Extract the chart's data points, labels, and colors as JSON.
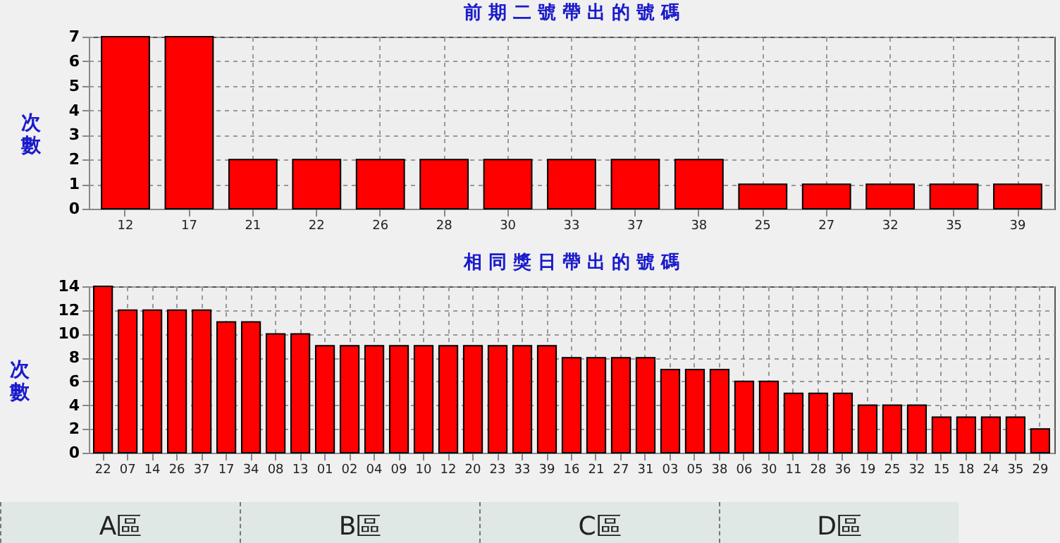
{
  "chart_data": [
    {
      "type": "bar",
      "title": "前 期 二 號 帶 出 的 號 碼",
      "ylabel": "次數",
      "categories": [
        "12",
        "17",
        "21",
        "22",
        "26",
        "28",
        "30",
        "33",
        "37",
        "38",
        "25",
        "27",
        "32",
        "35",
        "39"
      ],
      "values": [
        7,
        7,
        2,
        2,
        2,
        2,
        2,
        2,
        2,
        2,
        1,
        1,
        1,
        1,
        1
      ],
      "color": "#ff0000",
      "ylim": [
        0,
        7
      ],
      "yticks": [
        0,
        1,
        2,
        3,
        4,
        5,
        6,
        7
      ],
      "grid": true
    },
    {
      "type": "bar",
      "title": "相 同 獎 日 帶 出 的 號 碼",
      "ylabel": "次數",
      "categories": [
        "22",
        "07",
        "14",
        "26",
        "37",
        "17",
        "34",
        "08",
        "13",
        "01",
        "02",
        "04",
        "09",
        "10",
        "12",
        "20",
        "23",
        "33",
        "39",
        "16",
        "21",
        "27",
        "31",
        "03",
        "05",
        "38",
        "06",
        "30",
        "11",
        "28",
        "36",
        "19",
        "25",
        "32",
        "15",
        "18",
        "24",
        "35",
        "29"
      ],
      "values": [
        14,
        12,
        12,
        12,
        12,
        11,
        11,
        10,
        10,
        9,
        9,
        9,
        9,
        9,
        9,
        9,
        9,
        9,
        9,
        8,
        8,
        8,
        8,
        7,
        7,
        7,
        6,
        6,
        5,
        5,
        5,
        4,
        4,
        4,
        3,
        3,
        3,
        3,
        2
      ],
      "color": "#ff0000",
      "ylim": [
        0,
        14
      ],
      "yticks": [
        0,
        2,
        4,
        6,
        8,
        10,
        12,
        14
      ],
      "grid": true,
      "annotations": [
        "A區",
        "B區",
        "C區",
        "D區"
      ]
    }
  ]
}
